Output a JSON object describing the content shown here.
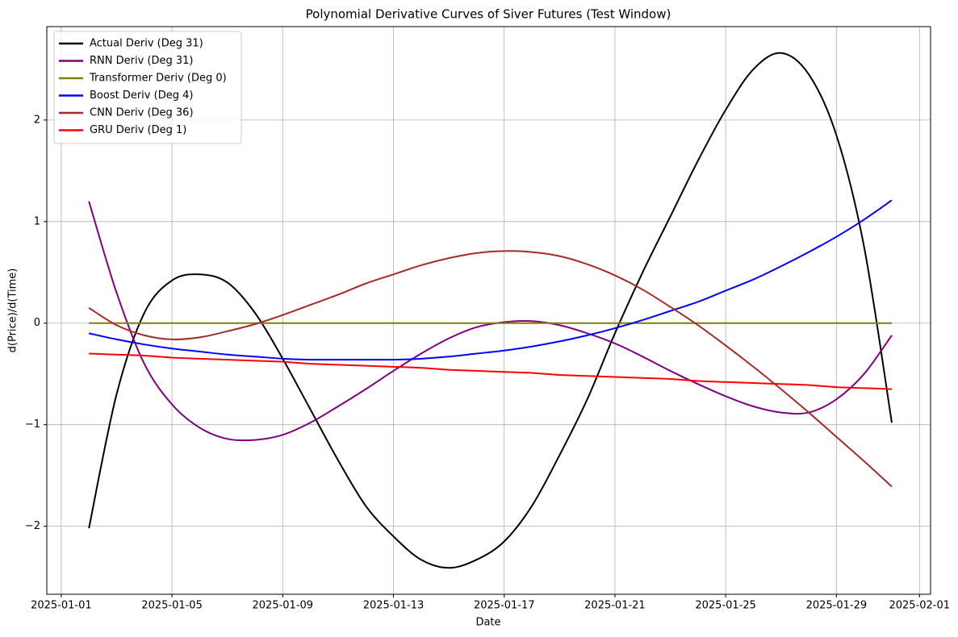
{
  "chart_data": {
    "type": "line",
    "title": "Polynomial Derivative Curves of Siver Futures (Test Window)",
    "x_label": "Date",
    "y_label": "d(Price)/d(Time)",
    "x": [
      "2025-01-02",
      "2025-01-03",
      "2025-01-04",
      "2025-01-05",
      "2025-01-06",
      "2025-01-07",
      "2025-01-08",
      "2025-01-09",
      "2025-01-10",
      "2025-01-11",
      "2025-01-12",
      "2025-01-13",
      "2025-01-14",
      "2025-01-15",
      "2025-01-16",
      "2025-01-17",
      "2025-01-18",
      "2025-01-19",
      "2025-01-20",
      "2025-01-21",
      "2025-01-22",
      "2025-01-23",
      "2025-01-24",
      "2025-01-25",
      "2025-01-26",
      "2025-01-27",
      "2025-01-28",
      "2025-01-29",
      "2025-01-30",
      "2025-01-31"
    ],
    "series": [
      {
        "name": "Actual Deriv (Deg 31)",
        "color": "#000000",
        "values": [
          -2.02,
          -0.7,
          0.1,
          0.42,
          0.48,
          0.4,
          0.1,
          -0.35,
          -0.85,
          -1.35,
          -1.8,
          -2.1,
          -2.33,
          -2.41,
          -2.33,
          -2.15,
          -1.8,
          -1.3,
          -0.75,
          -0.1,
          0.5,
          1.05,
          1.6,
          2.1,
          2.5,
          2.66,
          2.45,
          1.85,
          0.75,
          -0.98
        ]
      },
      {
        "name": "RNN Deriv (Deg 31)",
        "color": "#800080",
        "values": [
          1.2,
          0.3,
          -0.4,
          -0.8,
          -1.03,
          -1.14,
          -1.15,
          -1.1,
          -0.98,
          -0.82,
          -0.65,
          -0.47,
          -0.3,
          -0.15,
          -0.04,
          0.01,
          0.02,
          -0.02,
          -0.1,
          -0.2,
          -0.33,
          -0.47,
          -0.6,
          -0.72,
          -0.82,
          -0.88,
          -0.88,
          -0.75,
          -0.5,
          -0.12
        ]
      },
      {
        "name": "Transformer Deriv (Deg 0)",
        "color": "#808000",
        "values": [
          0,
          0,
          0,
          0,
          0,
          0,
          0,
          0,
          0,
          0,
          0,
          0,
          0,
          0,
          0,
          0,
          0,
          0,
          0,
          0,
          0,
          0,
          0,
          0,
          0,
          0,
          0,
          0,
          0,
          0
        ]
      },
      {
        "name": "Boost Deriv (Deg 4)",
        "color": "#0000ff",
        "values": [
          -0.1,
          -0.16,
          -0.21,
          -0.25,
          -0.28,
          -0.31,
          -0.33,
          -0.35,
          -0.36,
          -0.36,
          -0.36,
          -0.36,
          -0.35,
          -0.33,
          -0.3,
          -0.27,
          -0.23,
          -0.18,
          -0.12,
          -0.05,
          0.03,
          0.12,
          0.21,
          0.32,
          0.43,
          0.56,
          0.7,
          0.85,
          1.02,
          1.21
        ]
      },
      {
        "name": "CNN Deriv (Deg 36)",
        "color": "#a52a2a",
        "values": [
          0.15,
          -0.02,
          -0.12,
          -0.16,
          -0.14,
          -0.08,
          -0.01,
          0.08,
          0.18,
          0.28,
          0.39,
          0.48,
          0.57,
          0.64,
          0.69,
          0.71,
          0.7,
          0.66,
          0.58,
          0.47,
          0.33,
          0.16,
          -0.02,
          -0.22,
          -0.43,
          -0.65,
          -0.88,
          -1.12,
          -1.36,
          -1.61
        ]
      },
      {
        "name": "GRU Deriv (Deg 1)",
        "color": "#ff0000",
        "values": [
          -0.3,
          -0.31,
          -0.32,
          -0.34,
          -0.35,
          -0.36,
          -0.37,
          -0.38,
          -0.4,
          -0.41,
          -0.42,
          -0.43,
          -0.44,
          -0.46,
          -0.47,
          -0.48,
          -0.49,
          -0.51,
          -0.52,
          -0.53,
          -0.54,
          -0.55,
          -0.57,
          -0.58,
          -0.59,
          -0.6,
          -0.61,
          -0.63,
          -0.64,
          -0.65
        ]
      }
    ],
    "xlim": [
      "2024-12-31T11:30",
      "2025-02-01T09:36"
    ],
    "xticks": [
      "2025-01-01",
      "2025-01-05",
      "2025-01-09",
      "2025-01-13",
      "2025-01-17",
      "2025-01-21",
      "2025-01-25",
      "2025-01-29",
      "2025-02-01"
    ],
    "ylim": [
      -2.67,
      2.92
    ],
    "yticks": [
      {
        "value": -2,
        "label": "−2"
      },
      {
        "value": -1,
        "label": "−1"
      },
      0,
      1,
      2
    ],
    "grid": true,
    "legend": "upper left"
  }
}
